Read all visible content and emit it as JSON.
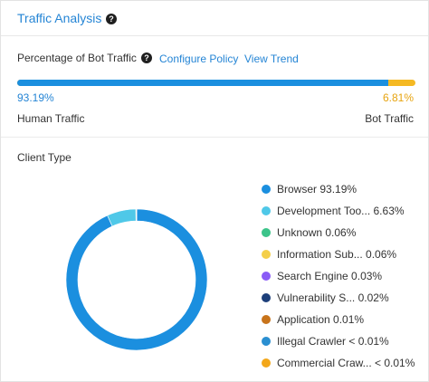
{
  "header": {
    "title": "Traffic Analysis",
    "help_icon": "question-circle-icon"
  },
  "bot_traffic": {
    "label": "Percentage of Bot Traffic",
    "links": {
      "configure_policy": "Configure Policy",
      "view_trend": "View Trend"
    },
    "human_percent_text": "93.19%",
    "bot_percent_text": "6.81%",
    "human_fraction": 0.9319,
    "human_label": "Human Traffic",
    "bot_label": "Bot Traffic",
    "colors": {
      "human": "#1b8fdf",
      "bot": "#f5b923"
    }
  },
  "client_type": {
    "title": "Client Type",
    "legend": [
      {
        "label": "Browser 93.19%",
        "color": "#1b8fdf"
      },
      {
        "label": "Development Too... 6.63%",
        "color": "#4fc8e8"
      },
      {
        "label": "Unknown 0.06%",
        "color": "#3cc48a"
      },
      {
        "label": "Information Sub... 0.06%",
        "color": "#f4cf4a"
      },
      {
        "label": "Search Engine 0.03%",
        "color": "#8a5cf6"
      },
      {
        "label": "Vulnerability S... 0.02%",
        "color": "#1d3f7a"
      },
      {
        "label": "Application 0.01%",
        "color": "#c8741b"
      },
      {
        "label": "Illegal Crawler < 0.01%",
        "color": "#2a8fd1"
      },
      {
        "label": "Commercial Craw... < 0.01%",
        "color": "#f3a71a"
      }
    ],
    "donut_data": [
      {
        "value": 93.19,
        "color": "#1b8fdf"
      },
      {
        "value": 6.63,
        "color": "#4fc8e8"
      },
      {
        "value": 0.06,
        "color": "#3cc48a"
      },
      {
        "value": 0.06,
        "color": "#f4cf4a"
      },
      {
        "value": 0.03,
        "color": "#8a5cf6"
      },
      {
        "value": 0.02,
        "color": "#1d3f7a"
      },
      {
        "value": 0.01,
        "color": "#c8741b"
      }
    ]
  }
}
